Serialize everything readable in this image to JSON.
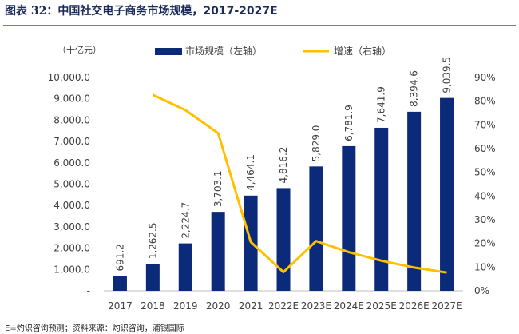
{
  "header": {
    "fig_label": "图表 32：",
    "title": "中国社交电子商务市场规模，2017-2027E"
  },
  "footnote": "E=灼识咨询预测；资料来源：灼识咨询，浦银国际",
  "colors": {
    "bar": "#0b2a7a",
    "line": "#ffc000",
    "text": "#404040",
    "axis": "#bfbfbf"
  },
  "chart_data": {
    "type": "bar",
    "unit_label": "（十亿元）",
    "categories": [
      "2017",
      "2018",
      "2019",
      "2020",
      "2021",
      "2022E",
      "2023E",
      "2024E",
      "2025E",
      "2026E",
      "2027E"
    ],
    "series": [
      {
        "name": "市场规模（左轴）",
        "type": "bar",
        "axis": "left",
        "values": [
          691.2,
          1262.5,
          2224.7,
          3703.1,
          4464.1,
          4816.2,
          5829.0,
          6781.9,
          7641.9,
          8394.6,
          9039.5
        ],
        "labels": [
          "691.2",
          "1,262.5",
          "2,224.7",
          "3,703.1",
          "4,464.1",
          "4,816.2",
          "5,829.0",
          "6,781.9",
          "7,641.9",
          "8,394.6",
          "9,039.5"
        ]
      },
      {
        "name": "增速（右轴）",
        "type": "line",
        "axis": "right",
        "values": [
          null,
          82.7,
          76.2,
          66.5,
          20.6,
          7.9,
          21.0,
          16.3,
          12.7,
          9.8,
          7.7
        ]
      }
    ],
    "y_left": {
      "min": 0,
      "max": 10000,
      "ticks": [
        0,
        1000,
        2000,
        3000,
        4000,
        5000,
        6000,
        7000,
        8000,
        9000,
        10000
      ],
      "tick_labels": [
        "-",
        "1,000.0",
        "2,000.0",
        "3,000.0",
        "4,000.0",
        "5,000.0",
        "6,000.0",
        "7,000.0",
        "8,000.0",
        "9,000.0",
        "10,000.0"
      ]
    },
    "y_right": {
      "min": 0,
      "max": 90,
      "ticks": [
        0,
        10,
        20,
        30,
        40,
        50,
        60,
        70,
        80,
        90
      ],
      "tick_labels": [
        "0%",
        "10%",
        "20%",
        "30%",
        "40%",
        "50%",
        "60%",
        "70%",
        "80%",
        "90%"
      ]
    },
    "legend_position": "top",
    "grid": false
  }
}
